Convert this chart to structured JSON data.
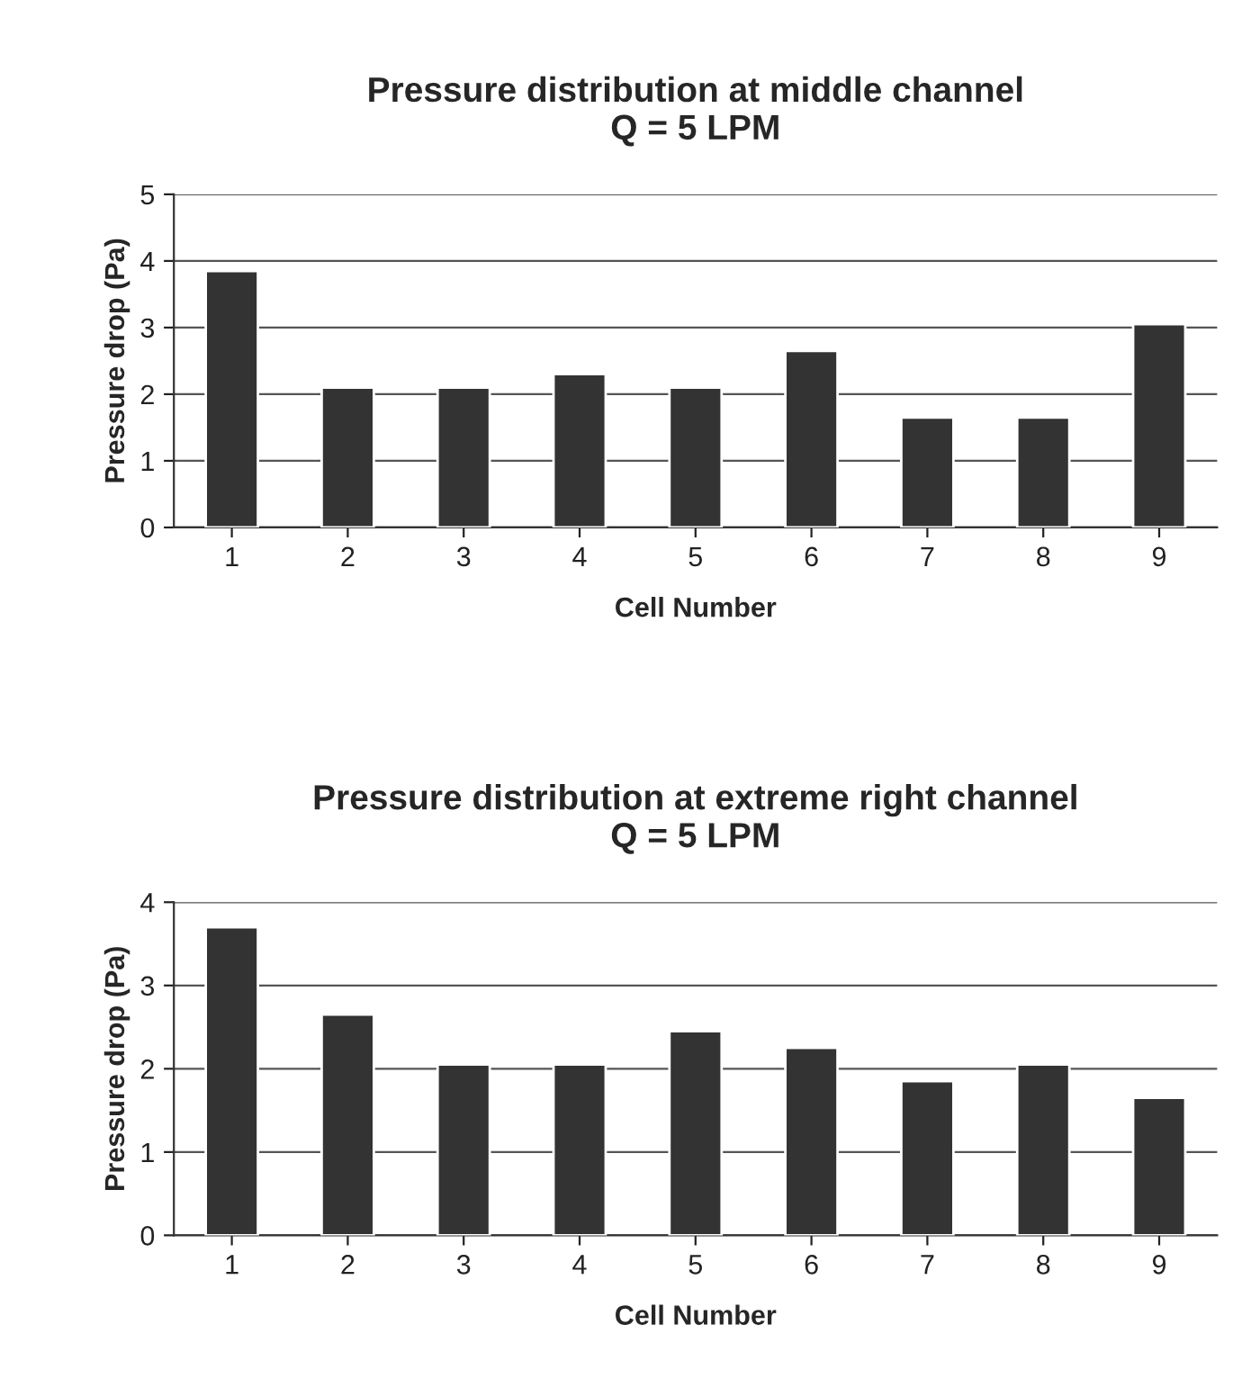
{
  "chart_data": [
    {
      "type": "bar",
      "title": "Pressure distribution at middle channel\nQ = 5 LPM",
      "xlabel": "Cell Number",
      "ylabel": "Pressure drop (Pa)",
      "categories": [
        "1",
        "2",
        "3",
        "4",
        "5",
        "6",
        "7",
        "8",
        "9"
      ],
      "series": [
        {
          "color": "#333333",
          "values": [
            3.85,
            2.1,
            2.1,
            2.3,
            2.1,
            2.65,
            1.65,
            1.65,
            3.05
          ]
        }
      ],
      "ylim": [
        0,
        5
      ],
      "yticks": [
        0,
        1,
        2,
        3,
        4,
        5
      ],
      "grid": "y",
      "legend": false
    },
    {
      "type": "bar",
      "title": "Pressure distribution at extreme right channel\nQ = 5 LPM",
      "xlabel": "Cell Number",
      "ylabel": "Pressure drop (Pa)",
      "categories": [
        "1",
        "2",
        "3",
        "4",
        "5",
        "6",
        "7",
        "8",
        "9"
      ],
      "series": [
        {
          "color": "#333333",
          "values": [
            3.7,
            2.65,
            2.05,
            2.05,
            2.45,
            2.25,
            1.85,
            2.05,
            1.65
          ]
        }
      ],
      "ylim": [
        0,
        4
      ],
      "yticks": [
        0,
        1,
        2,
        3,
        4
      ],
      "grid": "y",
      "legend": false
    }
  ]
}
